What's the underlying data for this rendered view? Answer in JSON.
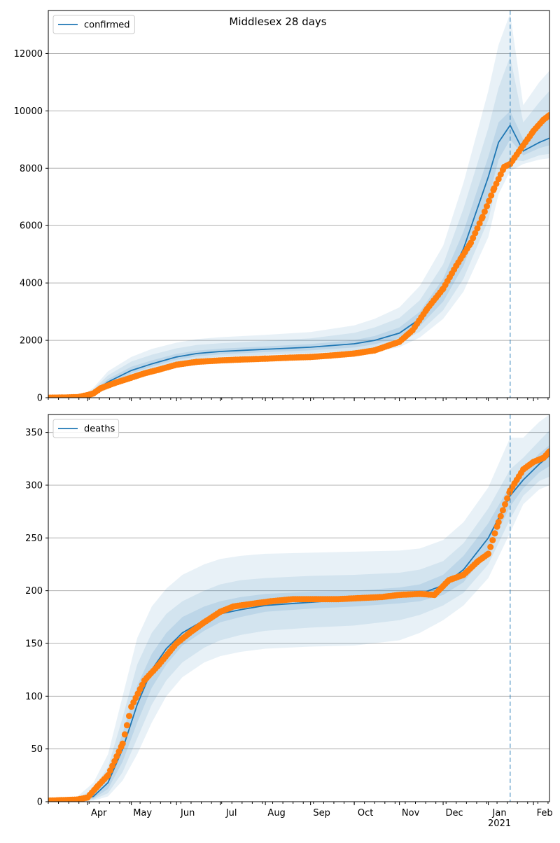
{
  "figure": {
    "title": "Middlesex 28 days"
  },
  "colors": {
    "line": "#1f77b4",
    "band": "#1f77b4",
    "observed": "#ff7f0e",
    "grid": "#b0b0b0",
    "forecast_line": "#1f77b4"
  },
  "chart_data": [
    {
      "type": "line",
      "name": "confirmed-panel",
      "legend": {
        "label": "confirmed",
        "placement": "top-left"
      },
      "ylim": [
        0,
        13500
      ],
      "yticks": [
        0,
        2000,
        4000,
        6000,
        8000,
        10000,
        12000
      ],
      "xlim": [
        "2020-03-05",
        "2021-02-12"
      ],
      "xticks": [],
      "forecast_start": "2021-01-16",
      "grid": "y",
      "model": {
        "dates": [
          "2020-03-05",
          "2020-03-20",
          "2020-03-30",
          "2020-04-05",
          "2020-04-15",
          "2020-05-01",
          "2020-05-15",
          "2020-06-01",
          "2020-06-15",
          "2020-07-01",
          "2020-08-01",
          "2020-09-01",
          "2020-10-01",
          "2020-10-15",
          "2020-11-01",
          "2020-11-15",
          "2020-12-01",
          "2020-12-15",
          "2021-01-01",
          "2021-01-08",
          "2021-01-16",
          "2021-01-25",
          "2021-02-05",
          "2021-02-12"
        ],
        "median": [
          0,
          5,
          60,
          200,
          550,
          950,
          1180,
          1420,
          1540,
          1610,
          1690,
          1760,
          1880,
          2000,
          2250,
          2750,
          3750,
          5200,
          7700,
          8900,
          9500,
          8600,
          8900,
          9050
        ],
        "q25": [
          0,
          4,
          50,
          160,
          460,
          850,
          1080,
          1320,
          1440,
          1510,
          1590,
          1650,
          1750,
          1860,
          2080,
          2500,
          3350,
          4600,
          6900,
          8300,
          9000,
          8450,
          8700,
          8800
        ],
        "q75": [
          0,
          6,
          80,
          240,
          650,
          1080,
          1300,
          1530,
          1640,
          1710,
          1790,
          1870,
          2010,
          2150,
          2450,
          3000,
          4150,
          5800,
          8400,
          9600,
          10000,
          9000,
          9500,
          9800
        ],
        "q10": [
          0,
          3,
          35,
          120,
          380,
          740,
          980,
          1240,
          1360,
          1430,
          1500,
          1560,
          1640,
          1730,
          1920,
          2300,
          3050,
          4150,
          6200,
          7700,
          8300,
          8250,
          8450,
          8500
        ],
        "q90": [
          0,
          8,
          100,
          290,
          780,
          1260,
          1500,
          1720,
          1840,
          1900,
          1980,
          2070,
          2260,
          2450,
          2780,
          3400,
          4650,
          6600,
          9400,
          10800,
          11900,
          9600,
          10300,
          10700
        ],
        "q03": [
          0,
          2,
          25,
          90,
          300,
          650,
          870,
          1130,
          1260,
          1330,
          1410,
          1460,
          1530,
          1600,
          1760,
          2100,
          2750,
          3700,
          5600,
          7100,
          7900,
          8150,
          8300,
          8350
        ],
        "q97": [
          0,
          10,
          130,
          350,
          920,
          1420,
          1700,
          1920,
          2040,
          2110,
          2190,
          2290,
          2520,
          2750,
          3150,
          3900,
          5300,
          7500,
          10700,
          12300,
          13400,
          10200,
          11000,
          11400
        ]
      },
      "observed": {
        "dates": [
          "2020-03-05",
          "2020-03-15",
          "2020-03-25",
          "2020-04-01",
          "2020-04-05",
          "2020-04-10",
          "2020-04-20",
          "2020-05-01",
          "2020-05-10",
          "2020-05-20",
          "2020-06-01",
          "2020-06-15",
          "2020-07-01",
          "2020-07-15",
          "2020-08-01",
          "2020-08-15",
          "2020-09-01",
          "2020-09-15",
          "2020-10-01",
          "2020-10-15",
          "2020-11-01",
          "2020-11-10",
          "2020-11-20",
          "2020-12-01",
          "2020-12-10",
          "2020-12-20",
          "2020-12-28",
          "2021-01-05",
          "2021-01-12",
          "2021-01-16",
          "2021-01-25",
          "2021-02-01",
          "2021-02-08",
          "2021-02-12"
        ],
        "values": [
          0,
          5,
          20,
          90,
          150,
          330,
          520,
          700,
          850,
          980,
          1150,
          1250,
          1300,
          1330,
          1360,
          1390,
          1420,
          1470,
          1540,
          1650,
          1950,
          2350,
          3100,
          3800,
          4600,
          5400,
          6300,
          7300,
          8050,
          8150,
          8800,
          9300,
          9700,
          9850
        ]
      }
    },
    {
      "type": "line",
      "name": "deaths-panel",
      "legend": {
        "label": "deaths",
        "placement": "top-left"
      },
      "ylim": [
        0,
        367
      ],
      "yticks": [
        0,
        50,
        100,
        150,
        200,
        250,
        300,
        350
      ],
      "xlim": [
        "2020-03-05",
        "2021-02-12"
      ],
      "xticks": [
        "Apr",
        "May",
        "Jun",
        "Jul",
        "Aug",
        "Sep",
        "Oct",
        "Nov",
        "Dec",
        "Jan\n2021",
        "Feb"
      ],
      "xtick_dates": [
        "2020-04-01",
        "2020-05-01",
        "2020-06-01",
        "2020-07-01",
        "2020-08-01",
        "2020-09-01",
        "2020-10-01",
        "2020-11-01",
        "2020-12-01",
        "2021-01-01",
        "2021-02-01"
      ],
      "forecast_start": "2021-01-16",
      "grid": "y",
      "model": {
        "dates": [
          "2020-03-05",
          "2020-03-25",
          "2020-04-05",
          "2020-04-15",
          "2020-04-25",
          "2020-05-05",
          "2020-05-15",
          "2020-05-25",
          "2020-06-05",
          "2020-06-20",
          "2020-07-01",
          "2020-07-15",
          "2020-08-01",
          "2020-09-01",
          "2020-10-01",
          "2020-11-01",
          "2020-11-15",
          "2020-12-01",
          "2020-12-15",
          "2021-01-01",
          "2021-01-16",
          "2021-01-25",
          "2021-02-05",
          "2021-02-12"
        ],
        "median": [
          0,
          1,
          5,
          18,
          50,
          92,
          125,
          145,
          160,
          172,
          178,
          182,
          186,
          189,
          192,
          195,
          197,
          205,
          220,
          250,
          290,
          305,
          320,
          328
        ],
        "q25": [
          0,
          1,
          3,
          12,
          38,
          75,
          108,
          130,
          148,
          162,
          170,
          175,
          180,
          183,
          185,
          188,
          190,
          196,
          208,
          238,
          280,
          297,
          312,
          318
        ],
        "q75": [
          0,
          2,
          8,
          25,
          65,
          110,
          140,
          160,
          175,
          185,
          190,
          194,
          197,
          199,
          200,
          203,
          206,
          215,
          233,
          264,
          300,
          315,
          330,
          338
        ],
        "q10": [
          0,
          1,
          2,
          8,
          28,
          60,
          92,
          115,
          132,
          146,
          153,
          158,
          162,
          165,
          167,
          172,
          177,
          186,
          198,
          225,
          268,
          290,
          304,
          308
        ],
        "q90": [
          0,
          3,
          12,
          33,
          80,
          130,
          160,
          178,
          190,
          200,
          206,
          210,
          212,
          214,
          215,
          217,
          220,
          228,
          245,
          278,
          315,
          326,
          342,
          352
        ],
        "q03": [
          0,
          0,
          1,
          5,
          20,
          45,
          75,
          100,
          118,
          132,
          138,
          142,
          145,
          147,
          148,
          153,
          160,
          172,
          186,
          212,
          255,
          282,
          296,
          300
        ],
        "q97": [
          0,
          5,
          18,
          45,
          100,
          155,
          185,
          202,
          215,
          225,
          230,
          233,
          235,
          236,
          237,
          238,
          240,
          248,
          265,
          298,
          345,
          345,
          360,
          367
        ]
      },
      "observed": {
        "dates": [
          "2020-03-05",
          "2020-03-25",
          "2020-04-01",
          "2020-04-08",
          "2020-04-15",
          "2020-04-25",
          "2020-05-01",
          "2020-05-10",
          "2020-05-20",
          "2020-06-01",
          "2020-06-10",
          "2020-06-20",
          "2020-07-01",
          "2020-07-10",
          "2020-07-25",
          "2020-08-05",
          "2020-08-20",
          "2020-09-05",
          "2020-09-20",
          "2020-10-05",
          "2020-10-20",
          "2020-11-01",
          "2020-11-15",
          "2020-11-25",
          "2020-12-05",
          "2020-12-15",
          "2020-12-25",
          "2021-01-01",
          "2021-01-08",
          "2021-01-16",
          "2021-01-25",
          "2021-02-01",
          "2021-02-08",
          "2021-02-12"
        ],
        "values": [
          1,
          2,
          4,
          15,
          25,
          55,
          90,
          115,
          130,
          150,
          160,
          170,
          180,
          185,
          188,
          190,
          192,
          192,
          192,
          193,
          194,
          196,
          197,
          196,
          210,
          215,
          228,
          235,
          265,
          295,
          315,
          322,
          326,
          332
        ]
      }
    }
  ]
}
